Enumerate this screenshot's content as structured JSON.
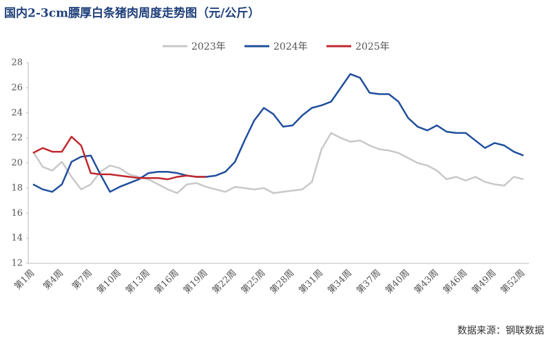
{
  "chart_data": {
    "type": "line",
    "title": "国内2-3cm膘厚白条猪肉周度走势图（元/公斤）",
    "source": "数据来源：钢联数据",
    "categories": [
      "第1周",
      null,
      null,
      "第4周",
      null,
      null,
      "第7周",
      null,
      null,
      "第10周",
      null,
      null,
      "第13周",
      null,
      null,
      "第16周",
      null,
      null,
      "第19周",
      null,
      null,
      "第22周",
      null,
      null,
      "第25周",
      null,
      null,
      "第28周",
      null,
      null,
      "第31周",
      null,
      null,
      "第34周",
      null,
      null,
      "第37周",
      null,
      null,
      "第40周",
      null,
      null,
      "第43周",
      null,
      null,
      "第46周",
      null,
      null,
      "第49周",
      null,
      null,
      "第52周"
    ],
    "series": [
      {
        "name": "2023年",
        "color": "#c8c8c8",
        "values": [
          20.9,
          19.7,
          19.4,
          20.1,
          18.9,
          17.9,
          18.3,
          19.3,
          19.8,
          19.6,
          19.1,
          18.9,
          18.7,
          18.3,
          17.9,
          17.6,
          18.3,
          18.4,
          18.1,
          17.9,
          17.7,
          18.1,
          18.0,
          17.9,
          18.0,
          17.6,
          17.7,
          17.8,
          17.9,
          18.5,
          21.1,
          22.4,
          22.0,
          21.7,
          21.8,
          21.4,
          21.1,
          21.0,
          20.8,
          20.4,
          20.0,
          19.8,
          19.4,
          18.7,
          18.9,
          18.6,
          18.9,
          18.5,
          18.3,
          18.2,
          18.9,
          18.7
        ]
      },
      {
        "name": "2024年",
        "color": "#1f4e9c",
        "values": [
          18.3,
          17.9,
          17.7,
          18.3,
          20.1,
          20.5,
          20.6,
          19.1,
          17.7,
          18.1,
          18.4,
          18.7,
          19.2,
          19.3,
          19.3,
          19.2,
          19.0,
          18.9,
          18.9,
          19.0,
          19.3,
          20.1,
          21.8,
          23.4,
          24.4,
          23.9,
          22.9,
          23.0,
          23.8,
          24.4,
          24.6,
          24.9,
          26.0,
          27.1,
          26.8,
          25.6,
          25.5,
          25.5,
          24.9,
          23.6,
          22.9,
          22.6,
          23.0,
          22.5,
          22.4,
          22.4,
          21.8,
          21.2,
          21.6,
          21.4,
          20.9,
          20.6
        ]
      },
      {
        "name": "2025年",
        "color": "#c0272d",
        "values": [
          20.8,
          21.2,
          20.9,
          20.9,
          22.1,
          21.4,
          19.2,
          19.1,
          19.1,
          19.0,
          18.9,
          18.8,
          18.8,
          18.8,
          18.7,
          18.9,
          19.0,
          18.9,
          18.9,
          null,
          null,
          null,
          null,
          null,
          null,
          null,
          null,
          null,
          null,
          null,
          null,
          null,
          null,
          null,
          null,
          null,
          null,
          null,
          null,
          null,
          null,
          null,
          null,
          null,
          null,
          null,
          null,
          null,
          null,
          null,
          null,
          null
        ]
      }
    ],
    "ylim": [
      12,
      28
    ],
    "yticks": [
      12,
      14,
      16,
      18,
      20,
      22,
      24,
      26,
      28
    ],
    "grid": false
  }
}
